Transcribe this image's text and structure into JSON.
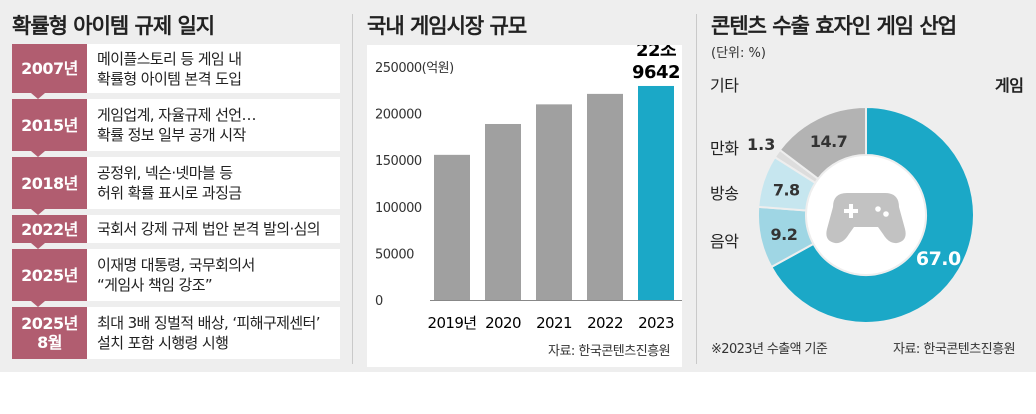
{
  "timeline": {
    "title": "확률형 아이템 규제 일지",
    "entries": [
      {
        "year": "2007년",
        "lines": [
          "메이플스토리 등 게임 내",
          "확률형 아이템 본격 도입"
        ]
      },
      {
        "year": "2015년",
        "lines": [
          "게임업계, 자율규제 선언…",
          "확률 정보 일부 공개 시작"
        ]
      },
      {
        "year": "2018년",
        "lines": [
          "공정위, 넥슨·넷마블 등",
          "허위 확률 표시로 과징금"
        ]
      },
      {
        "year": "2022년",
        "lines": [
          "국회서 강제 규제 법안 본격 발의·심의"
        ]
      },
      {
        "year": "2025년",
        "lines": [
          "이재명 대통령, 국무회의서",
          "“게임사 책임 강조”"
        ]
      },
      {
        "year": "2025년\n8월",
        "lines": [
          "최대 3배 징벌적 배상, ‘피해구제센터’",
          "설치 포함 시행령 시행"
        ]
      }
    ],
    "colors": {
      "year_bg": "#b15d70"
    }
  },
  "market": {
    "title": "국내 게임시장 규모",
    "source": "자료: 한국콘텐츠진흥원",
    "highlight_label": [
      "22조",
      "9642"
    ]
  },
  "export": {
    "title": "콘텐츠 수출 효자인 게임 산업",
    "unit": "(단위: %)",
    "note": "※2023년 수출액 기준",
    "source": "자료: 한국콘텐츠진흥원"
  },
  "chart_data": [
    {
      "type": "bar",
      "title": "국내 게임시장 규모",
      "ylabel": "(억원)",
      "categories": [
        "2019년",
        "2020",
        "2021",
        "2022",
        "2023"
      ],
      "values": [
        155750,
        188855,
        209913,
        221149,
        229642
      ],
      "ylim": [
        0,
        250000
      ],
      "yticks": [
        0,
        50000,
        100000,
        150000,
        200000,
        250000
      ],
      "grid": false,
      "colors": {
        "bar": "#a0a0a0",
        "highlight": "#1ba8c7"
      }
    },
    {
      "type": "pie",
      "title": "콘텐츠 수출 효자인 게임 산업",
      "unit": "%",
      "slices": [
        {
          "label": "게임",
          "value": 67.0,
          "color": "#1ba8c7"
        },
        {
          "label": "음악",
          "value": 9.2,
          "color": "#9fd6e4"
        },
        {
          "label": "방송",
          "value": 7.8,
          "color": "#c6e6ef"
        },
        {
          "label": "만화",
          "value": 1.3,
          "color": "#dddddd"
        },
        {
          "label": "기타",
          "value": 14.7,
          "color": "#b3b3b3"
        }
      ]
    }
  ]
}
